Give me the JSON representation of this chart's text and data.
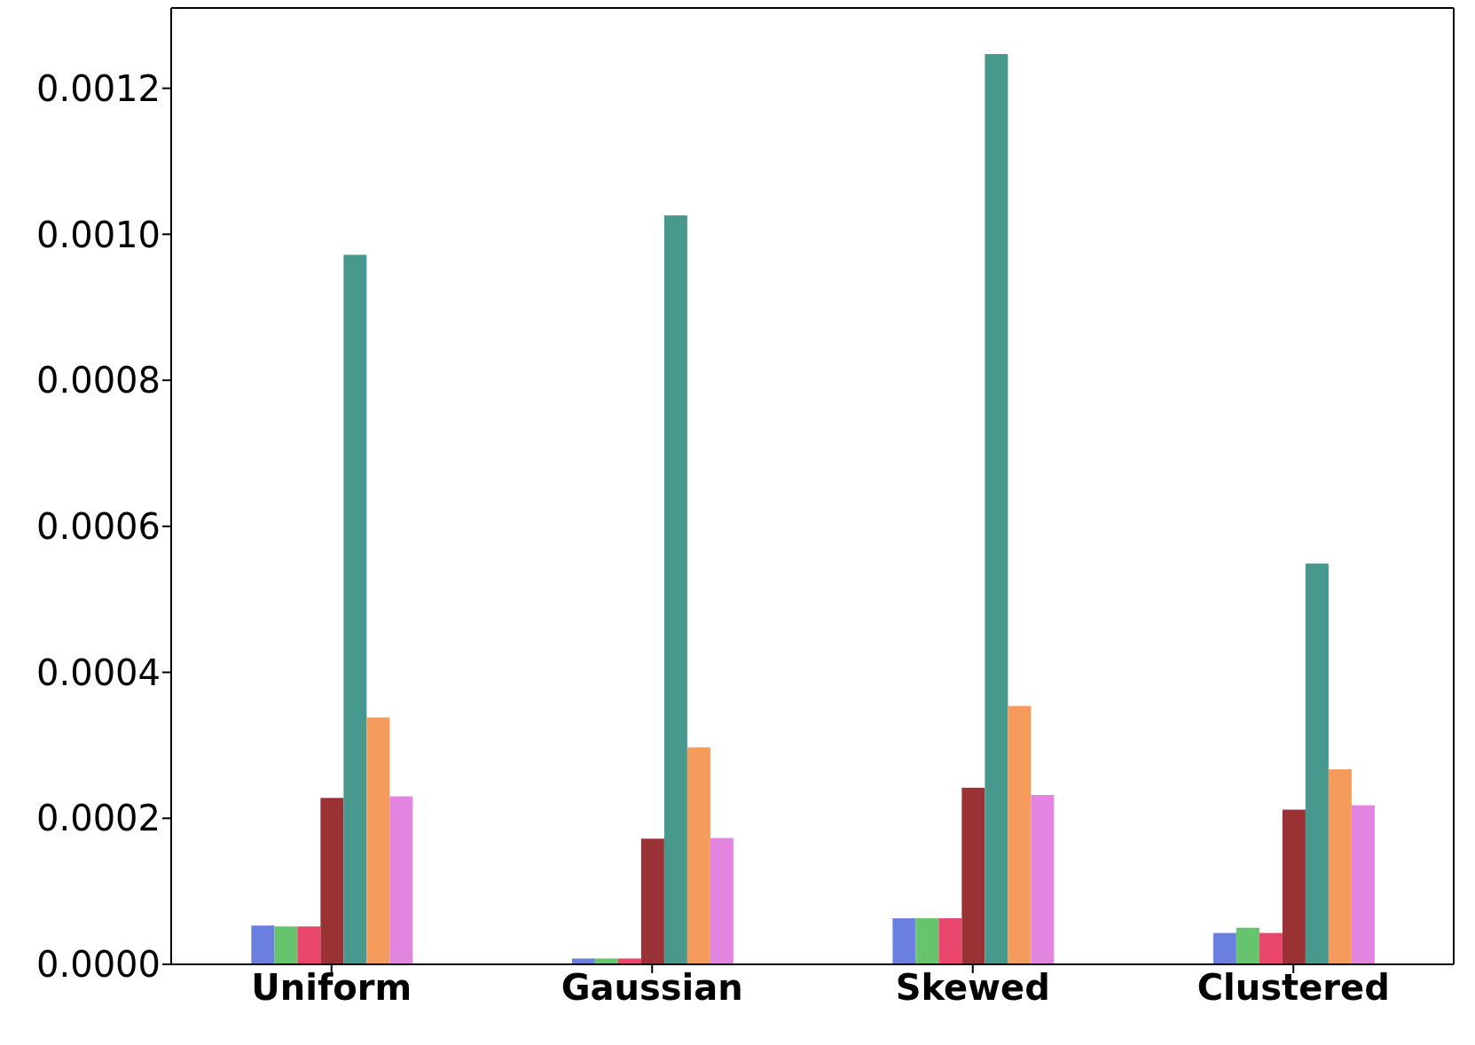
{
  "chart_data": {
    "type": "bar",
    "categories": [
      "Uniform",
      "Gaussian",
      "Skewed",
      "Clustered"
    ],
    "series": [
      {
        "color": "#6b7fe0",
        "values": [
          5.3e-05,
          8e-06,
          6.3e-05,
          4.3e-05
        ]
      },
      {
        "color": "#66c46c",
        "values": [
          5.2e-05,
          8e-06,
          6.3e-05,
          5e-05
        ]
      },
      {
        "color": "#e8476b",
        "values": [
          5.2e-05,
          8e-06,
          6.3e-05,
          4.3e-05
        ]
      },
      {
        "color": "#9a3134",
        "values": [
          0.000228,
          0.000172,
          0.000242,
          0.000212
        ]
      },
      {
        "color": "#46998c",
        "values": [
          0.000972,
          0.001026,
          0.001247,
          0.000549
        ]
      },
      {
        "color": "#f59b5c",
        "values": [
          0.000338,
          0.000297,
          0.000354,
          0.000267
        ]
      },
      {
        "color": "#e384e0",
        "values": [
          0.00023,
          0.000173,
          0.000232,
          0.000218
        ]
      }
    ],
    "ylim": [
      0,
      0.00131
    ],
    "yticks": [
      {
        "value": 0,
        "label": "0.0000"
      },
      {
        "value": 0.0002,
        "label": "0.0002"
      },
      {
        "value": 0.0004,
        "label": "0.0004"
      },
      {
        "value": 0.0006,
        "label": "0.0006"
      },
      {
        "value": 0.0008,
        "label": "0.0008"
      },
      {
        "value": 0.001,
        "label": "0.0010"
      },
      {
        "value": 0.0012,
        "label": "0.0012"
      }
    ],
    "grid": false,
    "legend": false
  }
}
